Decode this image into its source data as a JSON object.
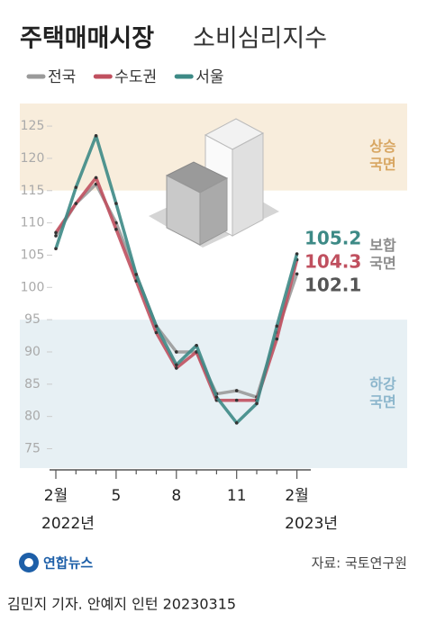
{
  "chart_data": {
    "type": "line",
    "title": "주택매매시장",
    "subtitle": "소비심리지수",
    "categories": [
      "2월",
      null,
      null,
      "5",
      null,
      null,
      "8",
      null,
      null,
      "11",
      null,
      null,
      "2월"
    ],
    "year_labels": [
      "2022년",
      "2023년"
    ],
    "series": [
      {
        "name": "전국",
        "color": "#9a9a9a",
        "values": [
          108,
          113,
          116,
          110,
          102,
          94,
          90,
          90,
          83.5,
          84,
          83,
          93,
          102.1
        ]
      },
      {
        "name": "수도권",
        "color": "#c0505f",
        "values": [
          108.5,
          113,
          117,
          109,
          101,
          93,
          87.5,
          90,
          82.5,
          82.5,
          82.5,
          92,
          104.3
        ]
      },
      {
        "name": "서울",
        "color": "#3d8a86",
        "values": [
          106,
          115.5,
          123.5,
          113,
          102,
          94,
          88,
          91,
          83,
          79,
          82,
          94,
          105.2
        ]
      }
    ],
    "ylim": [
      72,
      128.5
    ],
    "yticks": [
      75,
      80,
      85,
      90,
      95,
      100,
      105,
      110,
      115,
      120,
      125
    ],
    "bands": [
      {
        "label": [
          "상승",
          "국면"
        ],
        "range": [
          115,
          128.5
        ],
        "color": "#f8eddc",
        "label_color": "#d8a662"
      },
      {
        "label": [
          "보합",
          "국면"
        ],
        "range": [
          95,
          115
        ],
        "color": "#ffffff",
        "label_color": "#8c8c8c"
      },
      {
        "label": [
          "하강",
          "국면"
        ],
        "range": [
          72,
          95
        ],
        "color": "#e7f0f4",
        "label_color": "#8cb6cc"
      }
    ],
    "source": "자료: 국토연구원",
    "logo": "연합뉴스",
    "credit": "김민지 기자. 안예지 인턴  20230315"
  }
}
